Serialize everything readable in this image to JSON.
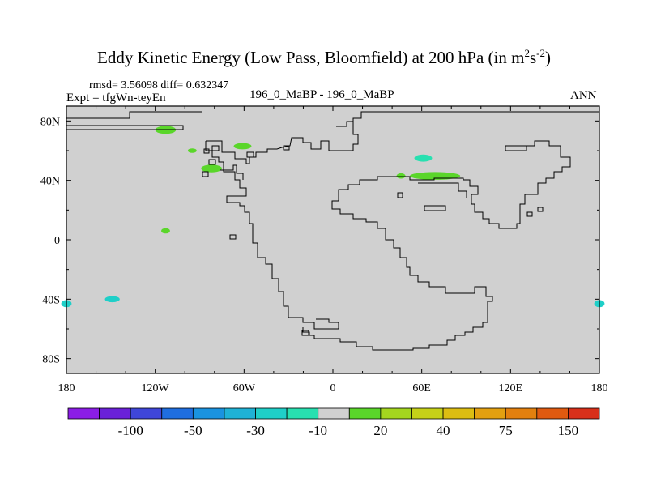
{
  "title": {
    "main": "Eddy Kinetic Energy (Low Pass, Bloomfield) at 200 hPa (in m",
    "sup1": "2",
    "mid": "s",
    "sup2": "-2",
    "end": ")"
  },
  "stats": {
    "rmsd_line": "rmsd= 3.56098 diff= 0.632347",
    "expt_line": "Expt = tfgWn-teyEn",
    "case_line": "196_0_MaBP - 196_0_MaBP",
    "period": "ANN"
  },
  "chart_data": {
    "type": "contour-map",
    "projection": "cylindrical-equidistant",
    "x_range": [
      -180,
      180
    ],
    "y_range": [
      -90,
      90
    ],
    "xticks": [
      {
        "value": -180,
        "label": "180"
      },
      {
        "value": -120,
        "label": "120W"
      },
      {
        "value": -60,
        "label": "60W"
      },
      {
        "value": 0,
        "label": "0"
      },
      {
        "value": 60,
        "label": "60E"
      },
      {
        "value": 120,
        "label": "120E"
      },
      {
        "value": 180,
        "label": "180"
      }
    ],
    "yticks": [
      {
        "value": 80,
        "label": "80N"
      },
      {
        "value": 40,
        "label": "40N"
      },
      {
        "value": 0,
        "label": "0"
      },
      {
        "value": -40,
        "label": "40S"
      },
      {
        "value": -80,
        "label": "80S"
      }
    ],
    "background_color": "#d0d0d0",
    "colorbar": {
      "colors": [
        "#8b1de6",
        "#6a21d8",
        "#3f46d9",
        "#1f6ee0",
        "#1a93e0",
        "#1fb2d6",
        "#1fcfc8",
        "#28e0b0",
        "#d0d0d0",
        "#5ad62a",
        "#a4d61f",
        "#c6d118",
        "#dcbd12",
        "#e3a010",
        "#e3800e",
        "#e05a10",
        "#d8301a"
      ],
      "labels": [
        {
          "index": 2,
          "text": "-100"
        },
        {
          "index": 4,
          "text": "-50"
        },
        {
          "index": 6,
          "text": "-30"
        },
        {
          "index": 8,
          "text": "-10"
        },
        {
          "index": 10,
          "text": "20"
        },
        {
          "index": 12,
          "text": "40"
        },
        {
          "index": 14,
          "text": "75"
        },
        {
          "index": 16,
          "text": "150"
        }
      ]
    },
    "anomalies": [
      {
        "lon": -113,
        "lat": 74,
        "rx": 7,
        "ry": 2.7,
        "color": "#5ad62a",
        "bin": "10 to 20"
      },
      {
        "lon": -95,
        "lat": 60,
        "rx": 3,
        "ry": 1.5,
        "color": "#5ad62a",
        "bin": "10 to 20"
      },
      {
        "lon": -61,
        "lat": 63,
        "rx": 6,
        "ry": 2.1,
        "color": "#5ad62a",
        "bin": "10 to 20"
      },
      {
        "lon": -82,
        "lat": 48,
        "rx": 7,
        "ry": 2.6,
        "color": "#5ad62a",
        "bin": "10 to 20"
      },
      {
        "lon": 61,
        "lat": 55,
        "rx": 6,
        "ry": 2.4,
        "color": "#28e0b0",
        "bin": "-10 to -5"
      },
      {
        "lon": 69,
        "lat": 43,
        "rx": 17,
        "ry": 2.6,
        "color": "#5ad62a",
        "bin": "10 to 20"
      },
      {
        "lon": 46,
        "lat": 43,
        "rx": 3,
        "ry": 1.8,
        "color": "#5ad62a",
        "bin": "10 to 20"
      },
      {
        "lon": -113,
        "lat": 6,
        "rx": 3,
        "ry": 1.8,
        "color": "#5ad62a",
        "bin": "10 to 20"
      },
      {
        "lon": -149,
        "lat": -40,
        "rx": 5,
        "ry": 2.1,
        "color": "#1fcfc8",
        "bin": "-20 to -10"
      },
      {
        "lon": -180,
        "lat": -43,
        "rx": 3.5,
        "ry": 2.4,
        "color": "#1fcfc8",
        "bin": "-20 to -10"
      },
      {
        "lon": 180,
        "lat": -43,
        "rx": 3.5,
        "ry": 2.4,
        "color": "#1fcfc8",
        "bin": "-20 to -10"
      }
    ]
  }
}
